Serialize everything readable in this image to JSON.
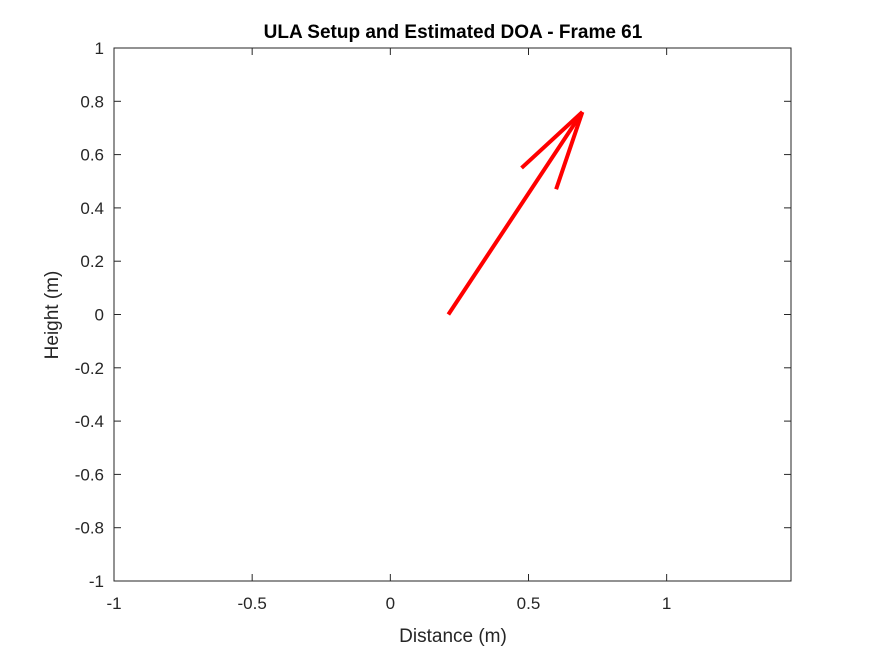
{
  "chart_data": {
    "type": "line",
    "title": "ULA Setup and Estimated DOA - Frame 61",
    "xlabel": "Distance (m)",
    "ylabel": "Height (m)",
    "xlim": [
      -1,
      1.45
    ],
    "ylim": [
      -1,
      1
    ],
    "xticks": [
      -1,
      -0.5,
      0,
      0.5,
      1
    ],
    "xtick_labels": [
      "-1",
      "-0.5",
      "0",
      "0.5",
      "1"
    ],
    "yticks": [
      1,
      0.8,
      0.6,
      0.4,
      0.2,
      0,
      -0.2,
      -0.4,
      -0.6,
      -0.8,
      -1
    ],
    "ytick_labels": [
      "1",
      "0.8",
      "0.6",
      "0.4",
      "0.2",
      "0",
      "-0.2",
      "-0.4",
      "-0.6",
      "-0.8",
      "-1"
    ],
    "grid": false,
    "series": [
      {
        "kind": "arrow",
        "color": "#ff0000",
        "shaft": {
          "x": [
            0.21,
            0.695
          ],
          "y": [
            0.0,
            0.76
          ]
        },
        "head_left": {
          "x": [
            0.475,
            0.695
          ],
          "y": [
            0.55,
            0.76
          ]
        },
        "head_right": {
          "x": [
            0.6,
            0.695
          ],
          "y": [
            0.47,
            0.76
          ]
        }
      }
    ]
  }
}
